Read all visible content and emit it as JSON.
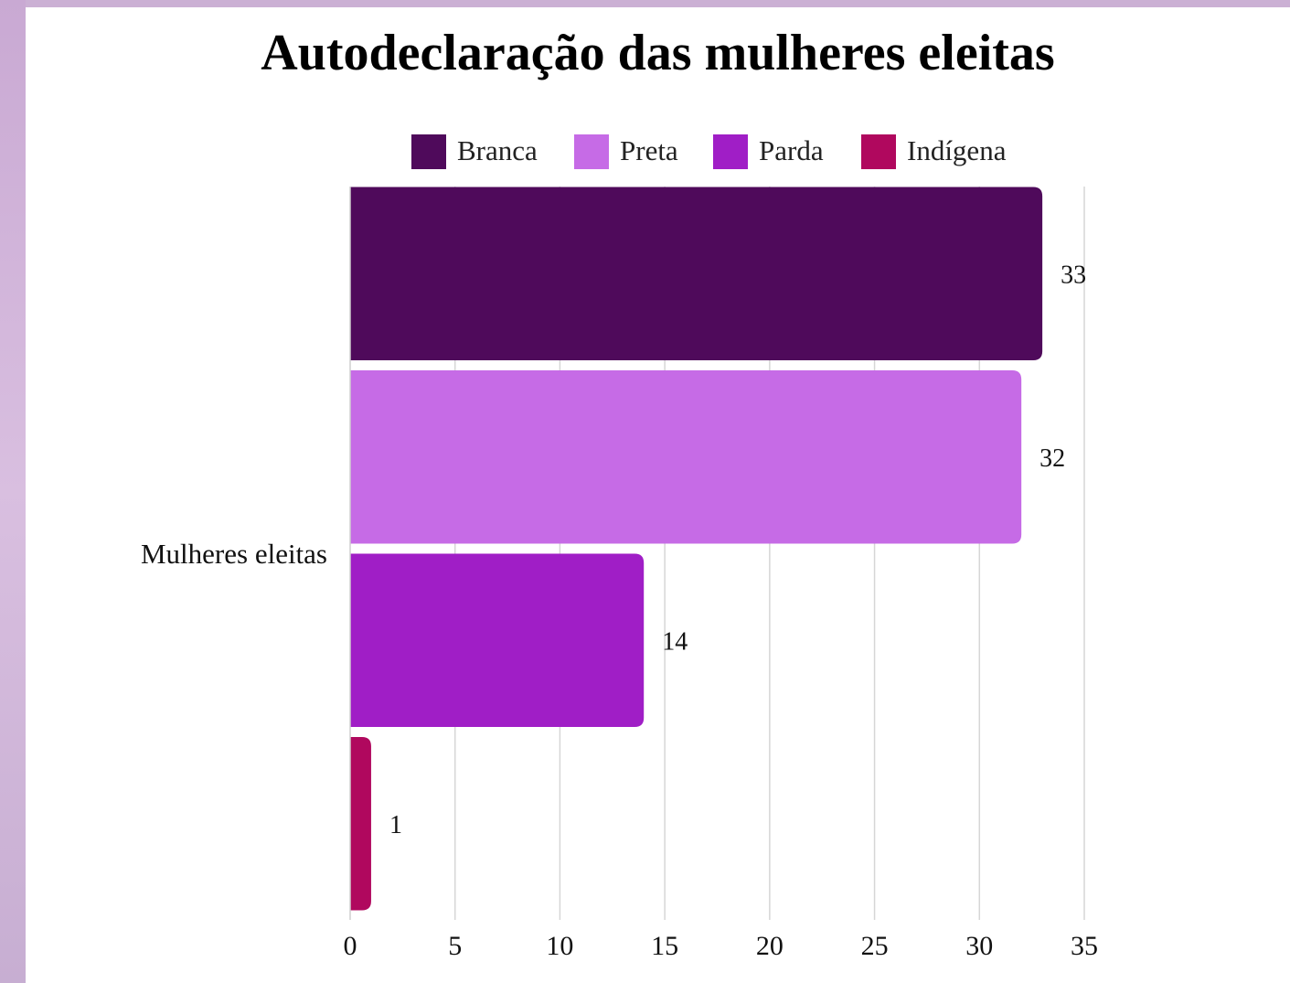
{
  "chart_data": {
    "type": "bar",
    "orientation": "horizontal",
    "title": "Autodeclaração das mulheres eleitas",
    "categories": [
      "Mulheres eleitas"
    ],
    "series": [
      {
        "name": "Branca",
        "values": [
          33
        ],
        "color": "#4f0a5b"
      },
      {
        "name": "Preta",
        "values": [
          32
        ],
        "color": "#c66be6"
      },
      {
        "name": "Parda",
        "values": [
          14
        ],
        "color": "#a01ec6"
      },
      {
        "name": "Indígena",
        "values": [
          1
        ],
        "color": "#b0085e"
      }
    ],
    "data_labels": [
      "33",
      "32",
      "14",
      "1"
    ],
    "x_ticks": [
      "0",
      "5",
      "10",
      "15",
      "20",
      "25",
      "30",
      "35"
    ],
    "xlim": [
      0,
      35
    ],
    "grid": true,
    "legend_position": "top"
  }
}
